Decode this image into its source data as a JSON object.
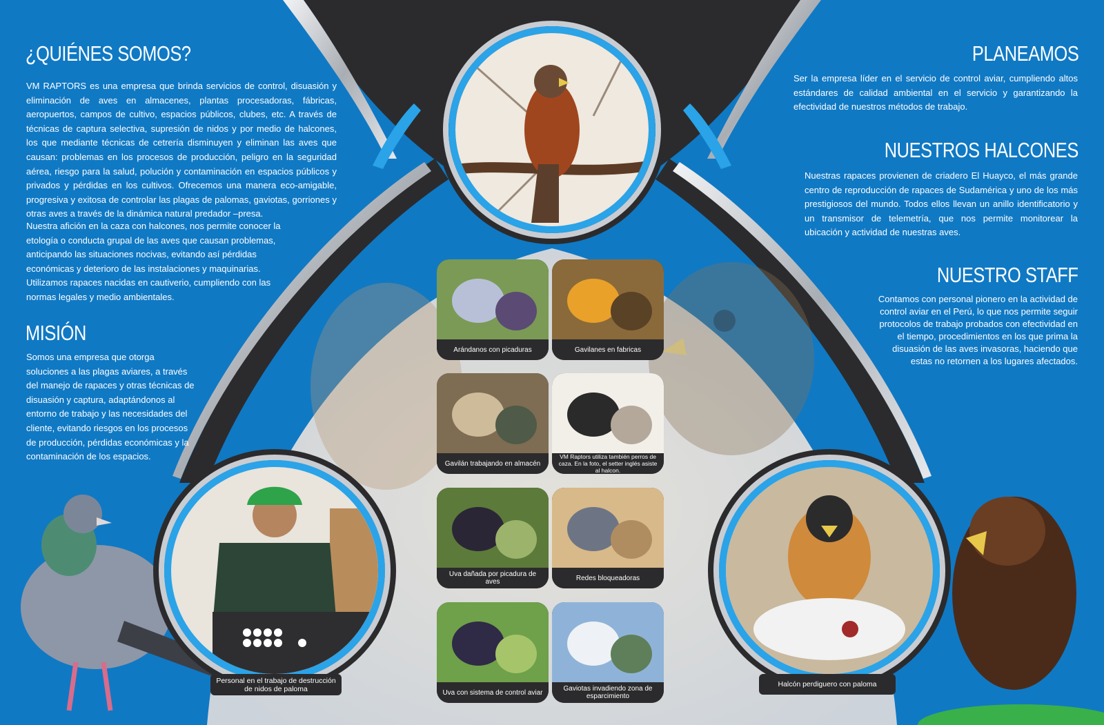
{
  "left": {
    "who_heading": "¿QUIÉNES SOMOS?",
    "who_para1": "VM RAPTORS es una empresa que brinda servicios de control, disuasión y eliminación de aves en almacenes, plantas procesadoras, fábricas, aeropuertos, campos de cultivo, espacios públicos, clubes, etc. A través de técnicas de captura selectiva, supresión de nidos y por medio de halcones, los que mediante técnicas de cetrería disminuyen y eliminan las aves que causan: problemas en los procesos de producción, peligro en la seguridad aérea, riesgo para la salud, polución y contaminación en espacios públicos y privados y pérdidas en los cultivos. Ofrecemos una manera eco-amigable, progresiva y exitosa de controlar las plagas de palomas, gaviotas, gorriones y otras aves a través de la dinámica natural predador –presa.",
    "who_para2": "Nuestra afición en la caza con halcones, nos permite conocer la etología o conducta grupal de las aves que causan problemas, anticipando las situaciones nocivas, evitando así pérdidas económicas y deterioro de las instalaciones y maquinarias. Utilizamos rapaces nacidas en cautiverio, cumpliendo con las normas legales y medio ambientales.",
    "mision_heading": "MISIÓN",
    "mision_para": "Somos una empresa que otorga soluciones a las plagas aviares, a través del manejo de rapaces y otras técnicas de disuasión y captura, adaptándonos al entorno de trabajo y las necesidades del cliente, evitando riesgos en los procesos de producción, pérdidas económicas y la contaminación de los espacios.",
    "staff_caption": "Personal en el trabajo de destrucción de nidos de paloma"
  },
  "right": {
    "planeamos_heading": "PLANEAMOS",
    "planeamos_para": "Ser la empresa líder en el servicio de control aviar, cumpliendo altos estándares de calidad ambiental en el servicio y garantizando la efectividad de nuestros métodos de trabajo.",
    "halcones_heading": "NUESTROS HALCONES",
    "halcones_para": "Nuestras rapaces provienen de criadero El Huayco, el más grande centro de reproducción de rapaces de Sudamérica y uno de los más prestigiosos del mundo. Todos ellos llevan un anillo identificatorio y un transmisor de telemetría, que nos permite monitorear la ubicación y actividad de nuestras aves.",
    "staff_heading": "NUESTRO STAFF",
    "staff_para": "Contamos con personal pionero en la actividad de control aviar en el Perú, lo que nos permite seguir protocolos de trabajo probados con efectividad en el tiempo, procedimientos en los que prima la disuasión de las aves invasoras, haciendo que estas no retornen a los lugares afectados.",
    "falcon_caption": "Halcón perdiguero con paloma"
  },
  "tiles": [
    {
      "caption": "Arándanos con picaduras",
      "icon": "blueberries-photo"
    },
    {
      "caption": "Gavilanes en fabricas",
      "icon": "hawks-factory-photo"
    },
    {
      "caption": "Gavilán trabajando en almacén",
      "icon": "warehouse-photo"
    },
    {
      "caption": "VM Raptors utiliza también perros de caza. En la foto, el setter inglés asiste al halcon.",
      "icon": "setter-dog-photo"
    },
    {
      "caption": "Uva dañada por picadura de aves",
      "icon": "damaged-grapes-photo"
    },
    {
      "caption": "Redes bloqueadoras",
      "icon": "nets-photo"
    },
    {
      "caption": "Uva con sistema de control aviar",
      "icon": "grapes-photo"
    },
    {
      "caption": "Gaviotas invadiendo zona de esparcimiento",
      "icon": "gulls-photo"
    }
  ],
  "colors": {
    "brand_blue": "#1079c4",
    "accent_blue": "#2aa3e8",
    "dark": "#2b2b2d",
    "silver": "#c9cdd2"
  }
}
